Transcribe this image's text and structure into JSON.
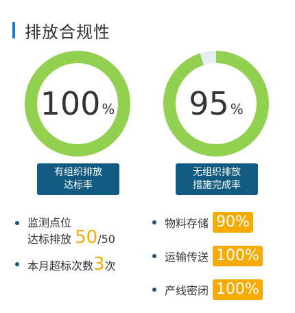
{
  "header": {
    "title": "排放合规性"
  },
  "gauges": [
    {
      "value": 100,
      "value_text": "100",
      "unit": "%",
      "caption_line1": "有组织排放",
      "caption_line2": "达标率"
    },
    {
      "value": 95,
      "value_text": "95",
      "unit": "%",
      "caption_line1": "无组织排放",
      "caption_line2": "措施完成率"
    }
  ],
  "stats": {
    "monitor_line1": "监测点位",
    "monitor_line2": "达标排放",
    "monitor_value": "50",
    "monitor_total": "/50",
    "exceed_label": "本月超标次数",
    "exceed_value": "3",
    "exceed_unit": "次"
  },
  "rates": [
    {
      "label": "物料存储",
      "value": "90%"
    },
    {
      "label": "运输传送",
      "value": "100%"
    },
    {
      "label": "产线密闭",
      "value": "100%"
    }
  ],
  "colors": {
    "accent": "#1a7fc1",
    "ring": "#92d050",
    "ring_track": "#e6eef2",
    "caption_bg": "#115a82",
    "highlight": "#f6ab00",
    "bullet": "#17557c"
  }
}
